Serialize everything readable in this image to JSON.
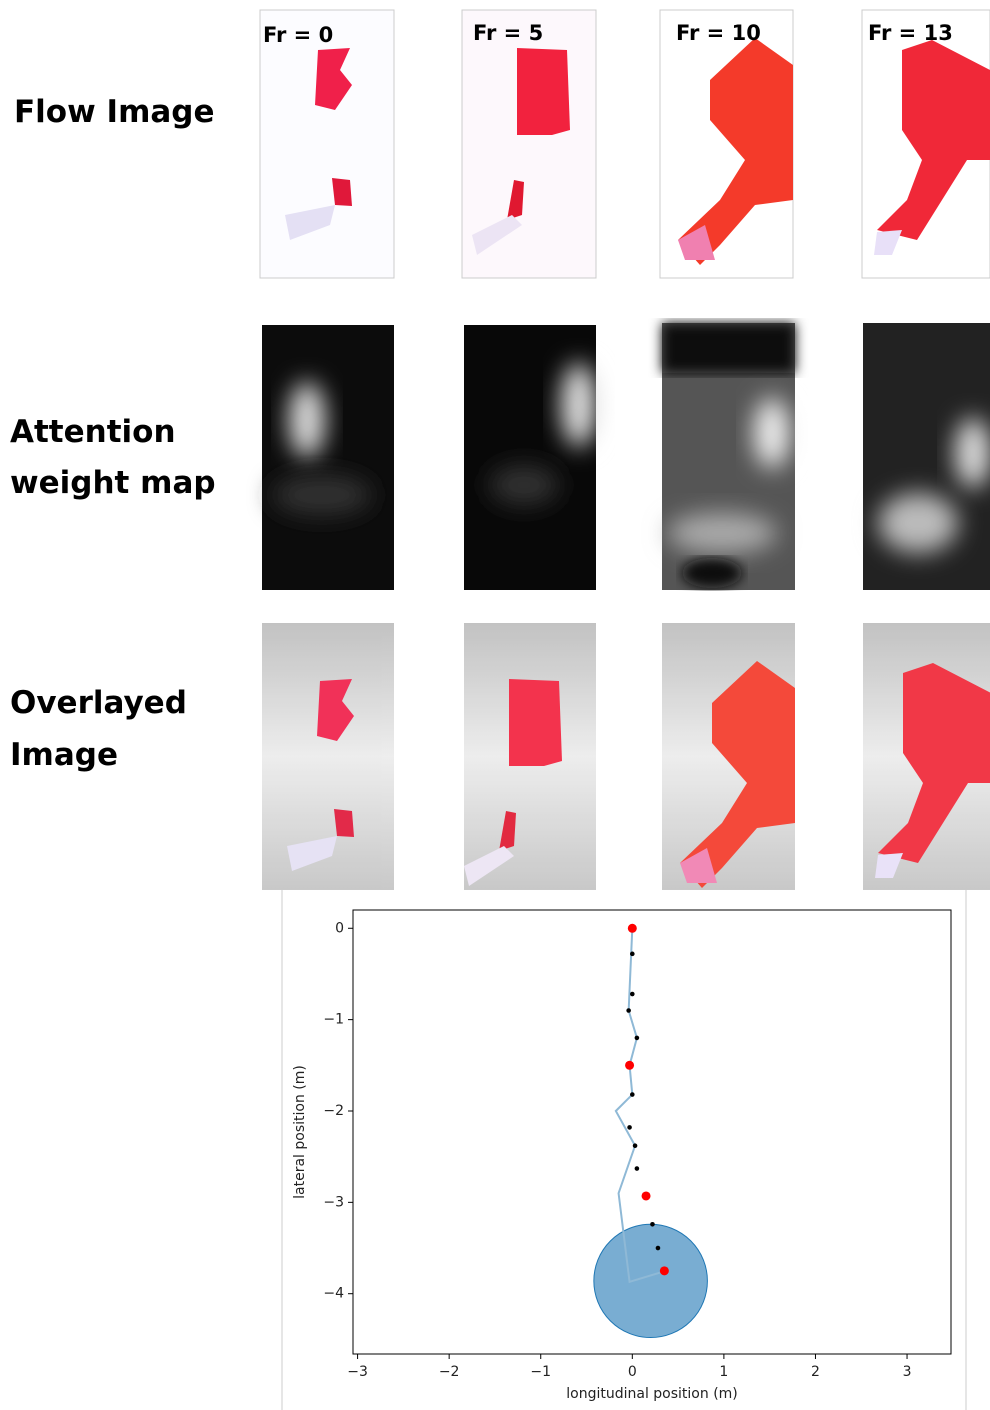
{
  "row_labels": [
    [
      "Flow Image"
    ],
    [
      "Attention",
      "weight map"
    ],
    [
      "Overlayed",
      "Image"
    ]
  ],
  "frame_labels": [
    "Fr = 0",
    "Fr = 5",
    "Fr = 10",
    "Fr = 13"
  ],
  "chart_data": {
    "type": "scatter",
    "x_label": "longitudinal position (m)",
    "y_label": "lateral position (m)",
    "xlim": [
      -3.05,
      3.48
    ],
    "ylim": [
      -4.66,
      0.2
    ],
    "xticks": [
      {
        "value": -3,
        "label": "−3"
      },
      {
        "value": -2,
        "label": "−2"
      },
      {
        "value": -1,
        "label": "−1"
      },
      0,
      1,
      2,
      3
    ],
    "yticks": [
      0,
      {
        "value": -1,
        "label": "−1"
      },
      {
        "value": -2,
        "label": "−2"
      },
      {
        "value": -3,
        "label": "−3"
      },
      {
        "value": -4,
        "label": "−4"
      }
    ],
    "circle": {
      "x": 0.2,
      "y": -3.86,
      "radius": 0.62,
      "color": "#1f77b4"
    },
    "series": [
      {
        "style": "line",
        "color": "#8fb9d6",
        "x": [
          0,
          -0.04,
          0.05,
          -0.03,
          0,
          -0.18,
          0.03,
          -0.15,
          -0.03,
          0.3
        ],
        "y": [
          0,
          -0.9,
          -1.2,
          -1.5,
          -1.82,
          -2.0,
          -2.38,
          -2.9,
          -3.87,
          -3.77
        ]
      },
      {
        "style": "points",
        "color": "#000000",
        "x": [
          0,
          0,
          -0.04,
          0.05,
          0,
          -0.03,
          0.03,
          0.05,
          0.22,
          0.28
        ],
        "y": [
          -0.28,
          -0.72,
          -0.9,
          -1.2,
          -1.82,
          -2.18,
          -2.38,
          -2.63,
          -3.24,
          -3.5
        ]
      },
      {
        "style": "points",
        "color": "#ff0000",
        "x": [
          0,
          -0.03,
          0.15,
          0.35
        ],
        "y": [
          0,
          -1.5,
          -2.93,
          -3.75
        ]
      }
    ]
  }
}
